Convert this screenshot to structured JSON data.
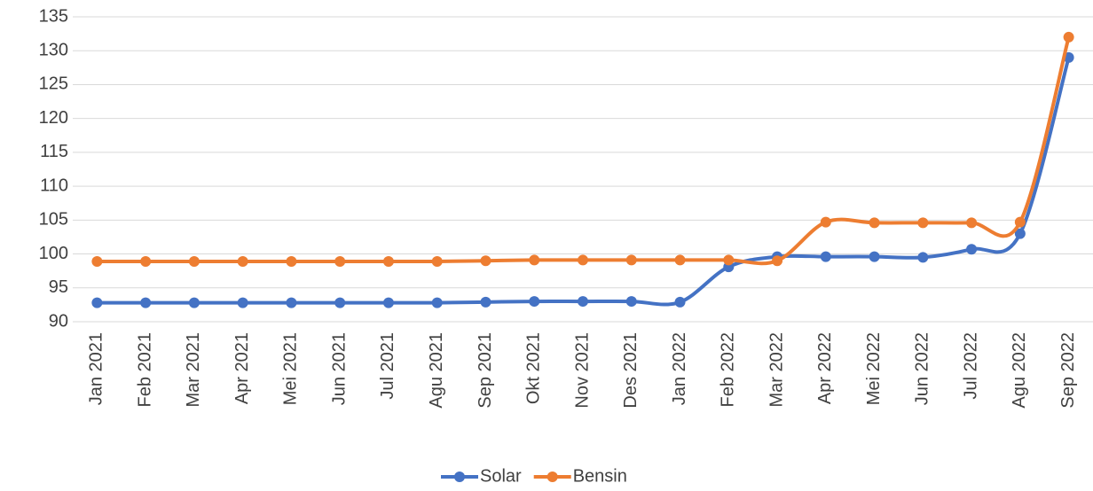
{
  "chart_data": {
    "type": "line",
    "categories": [
      "Jan 2021",
      "Feb 2021",
      "Mar 2021",
      "Apr 2021",
      "Mei 2021",
      "Jun 2021",
      "Jul 2021",
      "Agu 2021",
      "Sep 2021",
      "Okt 2021",
      "Nov 2021",
      "Des 2021",
      "Jan 2022",
      "Feb 2022",
      "Mar 2022",
      "Apr 2022",
      "Mei 2022",
      "Jun 2022",
      "Jul 2022",
      "Agu 2022",
      "Sep 2022"
    ],
    "series": [
      {
        "name": "Solar",
        "color": "#4472c4",
        "values": [
          92.8,
          92.8,
          92.8,
          92.8,
          92.8,
          92.8,
          92.8,
          92.8,
          92.9,
          93.0,
          93.0,
          93.0,
          92.9,
          98.1,
          99.6,
          99.6,
          99.6,
          99.5,
          100.7,
          103.0,
          129.0
        ]
      },
      {
        "name": "Bensin",
        "color": "#ed7d31",
        "values": [
          98.9,
          98.9,
          98.9,
          98.9,
          98.9,
          98.9,
          98.9,
          98.9,
          99.0,
          99.1,
          99.1,
          99.1,
          99.1,
          99.1,
          99.0,
          104.7,
          104.6,
          104.6,
          104.6,
          104.7,
          132.0
        ]
      }
    ],
    "ylim": [
      90,
      135
    ],
    "yticks": [
      90,
      95,
      100,
      105,
      110,
      115,
      120,
      125,
      130,
      135
    ],
    "grid": true,
    "legend": "bottom"
  }
}
